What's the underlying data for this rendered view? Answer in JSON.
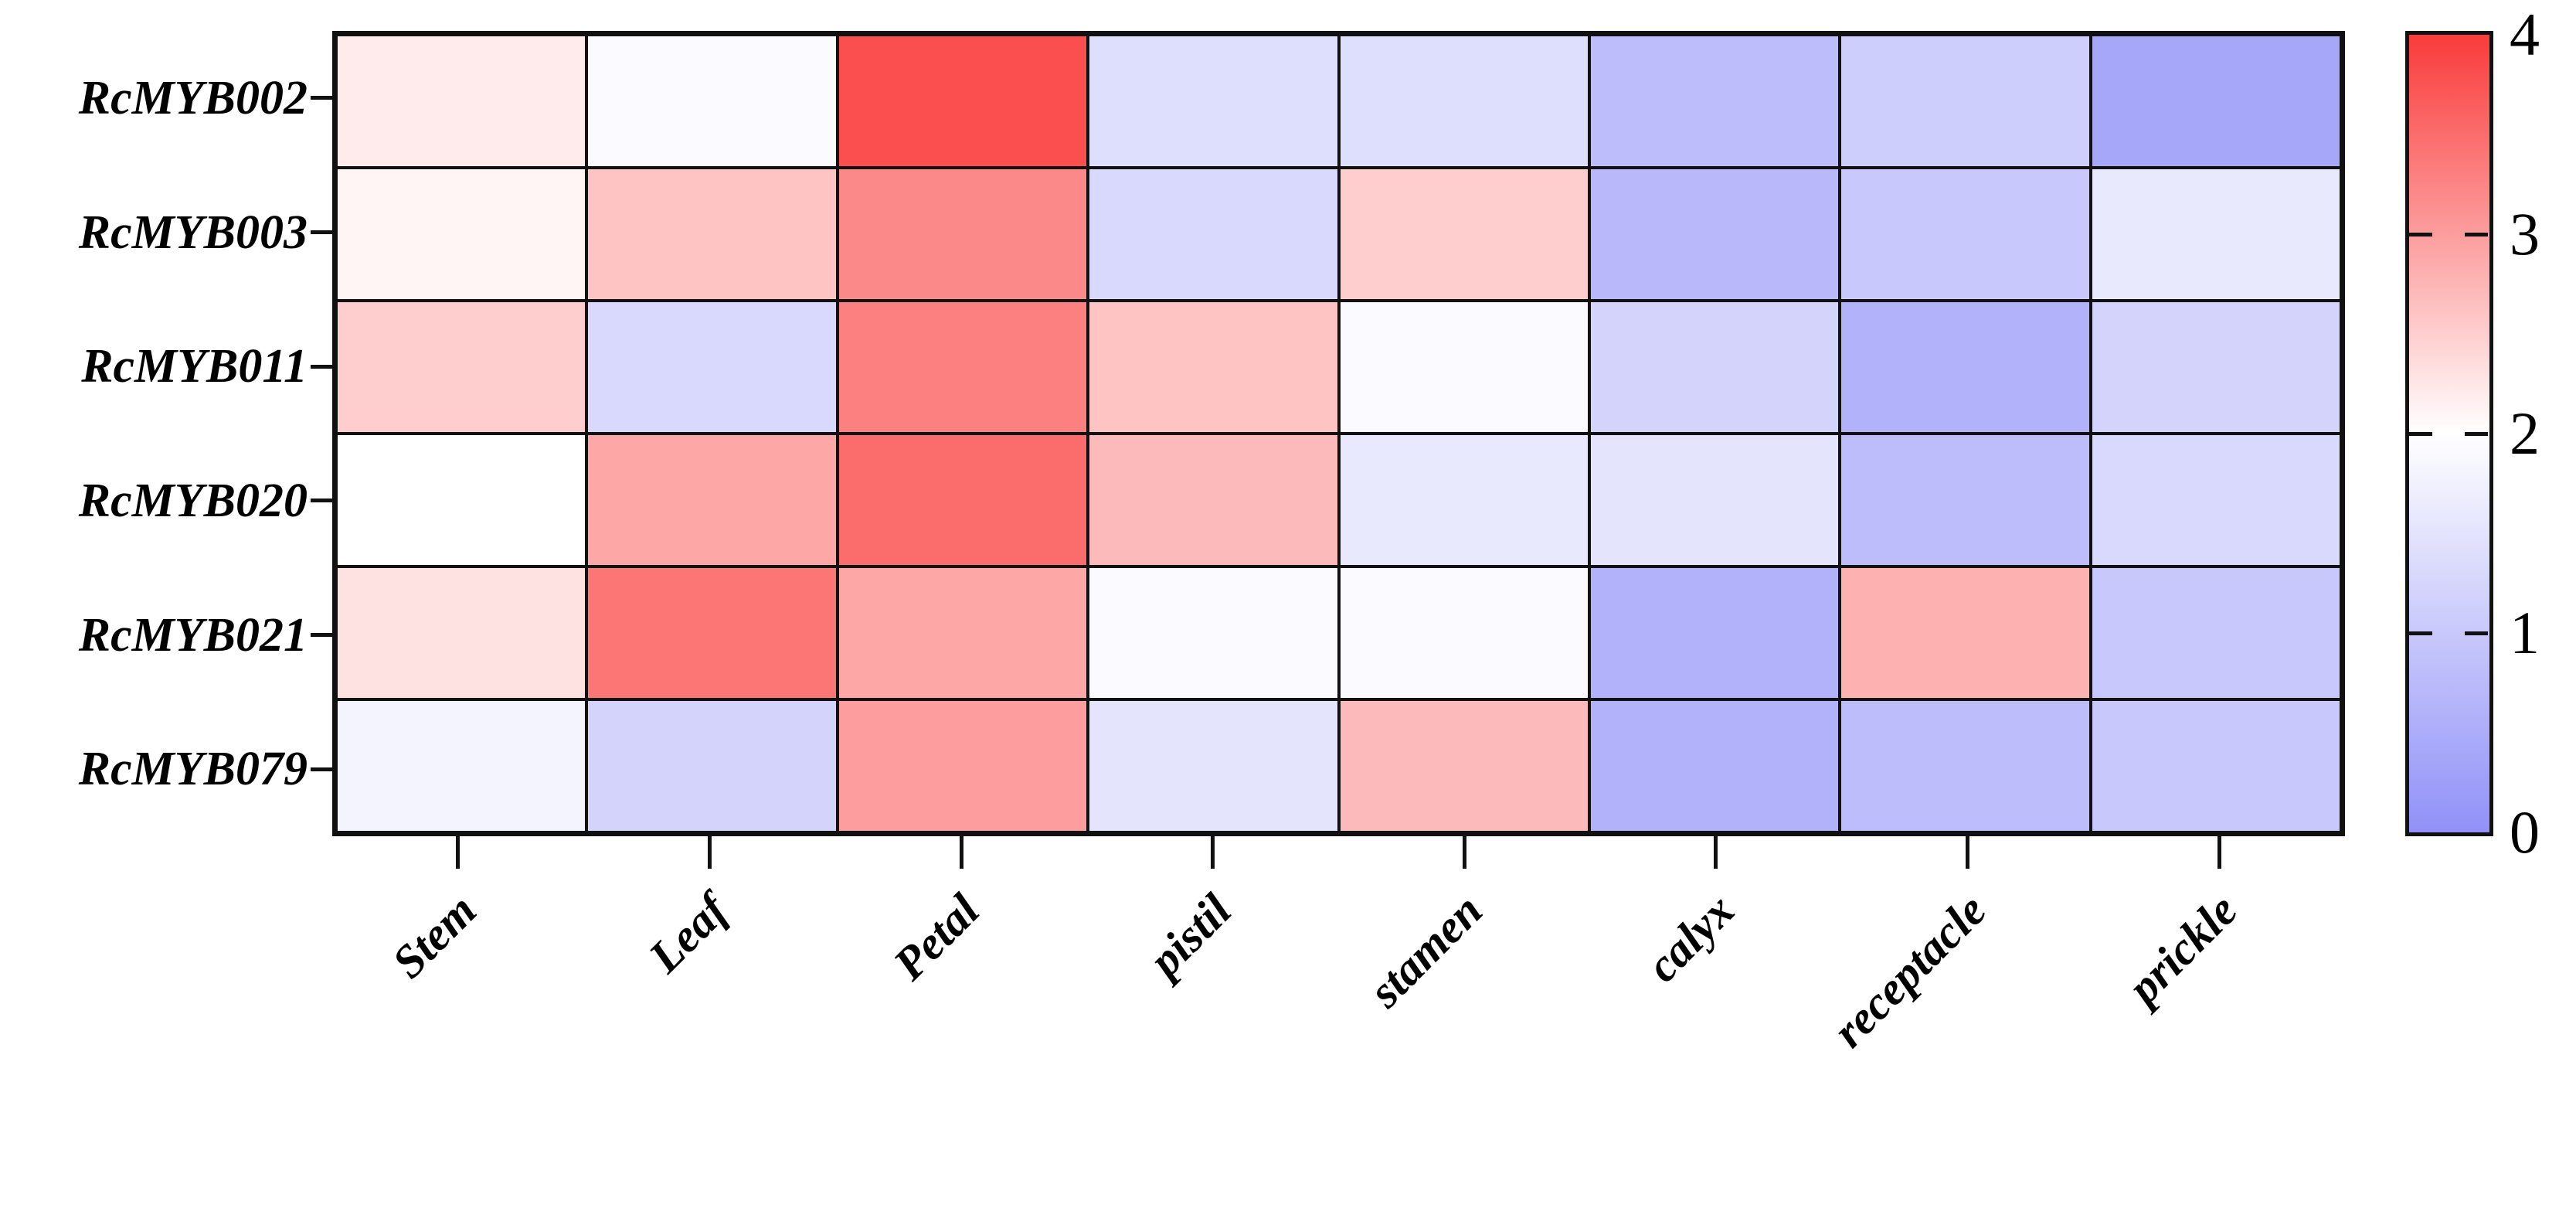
{
  "chart_data": {
    "type": "heatmap",
    "title": "",
    "xlabel": "",
    "ylabel": "",
    "rows": [
      "RcMYB002",
      "RcMYB003",
      "RcMYB011",
      "RcMYB020",
      "RcMYB021",
      "RcMYB079"
    ],
    "columns": [
      "Stem",
      "Leaf",
      "Petal",
      "pistil",
      "stamen",
      "calyx",
      "receptacle",
      "prickle"
    ],
    "values": [
      [
        2.2,
        1.9,
        3.8,
        1.4,
        1.4,
        0.8,
        1.1,
        0.4
      ],
      [
        2.1,
        2.6,
        3.2,
        1.3,
        2.5,
        0.7,
        1.0,
        1.6
      ],
      [
        2.5,
        1.3,
        3.3,
        2.6,
        1.9,
        1.2,
        0.6,
        1.2
      ],
      [
        2.0,
        2.9,
        3.5,
        2.7,
        1.6,
        1.5,
        0.8,
        1.3
      ],
      [
        2.3,
        3.4,
        2.9,
        1.9,
        1.9,
        0.6,
        2.8,
        1.0
      ],
      [
        1.8,
        1.2,
        3.0,
        1.5,
        2.7,
        0.6,
        0.8,
        1.0
      ]
    ],
    "grid_line_color": "#111111",
    "legend_position": "right",
    "colorbar": {
      "min": 0,
      "max": 4,
      "mid_value": 2,
      "tick_labels": [
        "0",
        "1",
        "2",
        "3",
        "4"
      ],
      "color_min": "#9191f8",
      "color_mid": "#ffffff",
      "color_max": "#fa3b3b"
    }
  }
}
